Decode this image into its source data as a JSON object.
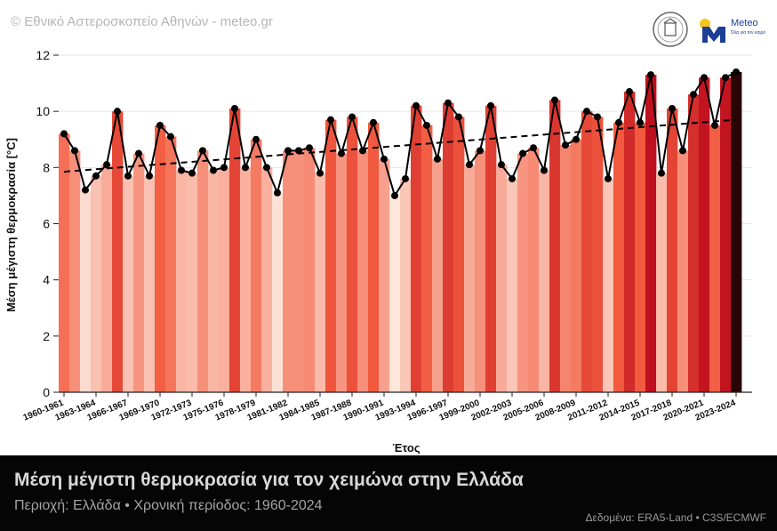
{
  "header": {
    "copyright": "© Εθνικό Αστεροσκοπείο Αθηνών - meteo.gr",
    "logo_text": "Meteo",
    "logo_subtext": "Όλα για τον καιρό"
  },
  "footer": {
    "title": "Μέση μέγιστη θερμοκρασία για τον χειμώνα στην Ελλάδα",
    "subtitle": "Περιοχή: Ελλάδα • Χρονική περίοδος: 1960-2024",
    "source": "Δεδομένα: ERA5-Land • C3S/ECMWF"
  },
  "chart_data": {
    "type": "bar",
    "overlay": [
      "line with markers",
      "dashed linear trend"
    ],
    "xlabel": "Έτος",
    "ylabel": "Μέση μέγιστη θερμοκρασία [°C]",
    "ylim": [
      0,
      12
    ],
    "yticks": [
      0,
      2,
      4,
      6,
      8,
      10,
      12
    ],
    "grid": "horizontal",
    "x_tick_labels": [
      "1960-1961",
      "1963-1964",
      "1966-1967",
      "1969-1970",
      "1972-1973",
      "1975-1976",
      "1978-1979",
      "1981-1982",
      "1984-1985",
      "1987-1988",
      "1990-1991",
      "1993-1994",
      "1996-1997",
      "1999-2000",
      "2002-2003",
      "2005-2006",
      "2008-2009",
      "2011-2012",
      "2014-2015",
      "2017-2018",
      "2020-2021",
      "2023-2024"
    ],
    "tick_every": 3,
    "categories": [
      "1960-1961",
      "1961-1962",
      "1962-1963",
      "1963-1964",
      "1964-1965",
      "1965-1966",
      "1966-1967",
      "1967-1968",
      "1968-1969",
      "1969-1970",
      "1970-1971",
      "1971-1972",
      "1972-1973",
      "1973-1974",
      "1974-1975",
      "1975-1976",
      "1976-1977",
      "1977-1978",
      "1978-1979",
      "1979-1980",
      "1980-1981",
      "1981-1982",
      "1982-1983",
      "1983-1984",
      "1984-1985",
      "1985-1986",
      "1986-1987",
      "1987-1988",
      "1988-1989",
      "1989-1990",
      "1990-1991",
      "1991-1992",
      "1992-1993",
      "1993-1994",
      "1994-1995",
      "1995-1996",
      "1996-1997",
      "1997-1998",
      "1998-1999",
      "1999-2000",
      "2000-2001",
      "2001-2002",
      "2002-2003",
      "2003-2004",
      "2004-2005",
      "2005-2006",
      "2006-2007",
      "2007-2008",
      "2008-2009",
      "2009-2010",
      "2010-2011",
      "2011-2012",
      "2012-2013",
      "2013-2014",
      "2014-2015",
      "2015-2016",
      "2016-2017",
      "2017-2018",
      "2018-2019",
      "2019-2020",
      "2020-2021",
      "2021-2022",
      "2022-2023",
      "2023-2024"
    ],
    "values": [
      9.2,
      8.6,
      7.2,
      7.7,
      8.1,
      10.0,
      7.7,
      8.5,
      7.7,
      9.5,
      9.1,
      7.9,
      7.8,
      8.6,
      7.9,
      8.0,
      10.1,
      8.0,
      9.0,
      8.0,
      7.1,
      8.6,
      8.6,
      8.7,
      7.8,
      9.7,
      8.5,
      9.8,
      8.6,
      9.6,
      8.3,
      7.0,
      7.6,
      10.2,
      9.5,
      8.3,
      10.3,
      9.8,
      8.1,
      8.6,
      10.2,
      8.1,
      7.6,
      8.5,
      8.7,
      7.9,
      10.4,
      8.8,
      9.0,
      10.0,
      9.8,
      7.6,
      9.6,
      10.7,
      9.6,
      11.3,
      7.8,
      10.1,
      8.6,
      10.6,
      11.2,
      9.5,
      11.2,
      11.4
    ],
    "trend": {
      "start": 7.85,
      "end": 9.7
    },
    "colors": {
      "cold": "#fde6dc",
      "mid": "#f25b3f",
      "hot": "#c0101f",
      "hottest": "#2a0505",
      "line": "#000000",
      "grid": "#e6e6e6"
    }
  }
}
